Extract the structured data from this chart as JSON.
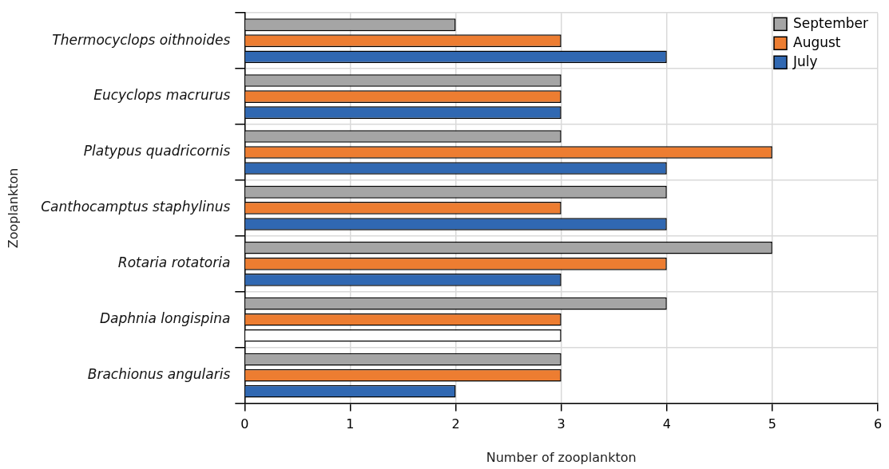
{
  "chart_data": {
    "type": "bar",
    "orientation": "horizontal",
    "xlabel": "Number of zooplankton",
    "ylabel": "Zooplankton",
    "categories": [
      "Thermocyclops oithnoides",
      "Eucyclops macrurus",
      "Platypus quadricornis",
      "Canthocamptus staphylinus",
      "Rotaria rotatoria",
      "Daphnia longispina",
      "Brachionus angularis"
    ],
    "series": [
      {
        "name": "September",
        "color": "#a5a5a5",
        "values": [
          2,
          3,
          3,
          4,
          5,
          4,
          3
        ]
      },
      {
        "name": "August",
        "color": "#ed7d31",
        "values": [
          3,
          3,
          5,
          3,
          4,
          3,
          3
        ]
      },
      {
        "name": "July",
        "color": "#3068b2",
        "colors": [
          "#3068b2",
          "#3068b2",
          "#3068b2",
          "#3068b2",
          "#3068b2",
          "#ffffff",
          "#3068b2"
        ],
        "values": [
          4,
          3,
          4,
          4,
          3,
          3,
          2
        ]
      }
    ],
    "xlim": [
      0,
      6
    ],
    "xticks": [
      0,
      1,
      2,
      3,
      4,
      5,
      6
    ],
    "grid": true,
    "legend": "top right"
  }
}
